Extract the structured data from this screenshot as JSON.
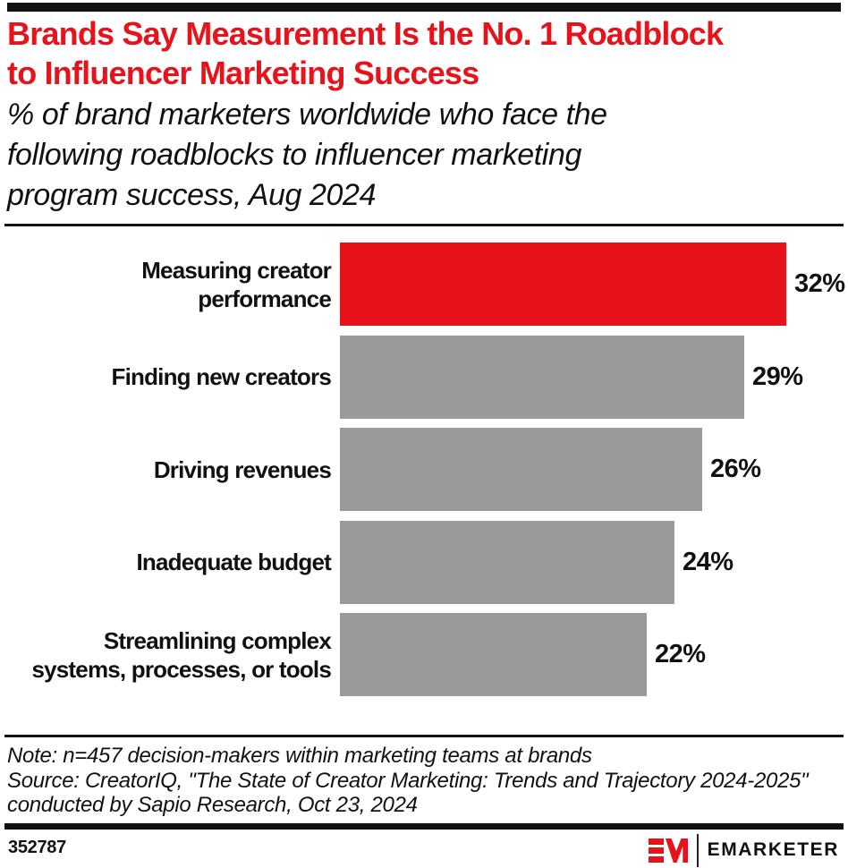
{
  "theme": {
    "accent_red": "#E8121B",
    "bar_gray": "#9A9A9A",
    "rule_black": "#111111"
  },
  "header": {
    "title_lines": [
      "Brands Say Measurement Is the No. 1 Roadblock",
      "to Influencer Marketing Success"
    ],
    "subtitle_lines": [
      "% of brand marketers worldwide who face the",
      "following roadblocks to influencer marketing",
      "program success, Aug 2024"
    ]
  },
  "chart_data": {
    "type": "bar",
    "orientation": "horizontal",
    "title": "Brands Say Measurement Is the No. 1 Roadblock to Influencer Marketing Success",
    "subtitle": "% of brand marketers worldwide who face the following roadblocks to influencer marketing program success, Aug 2024",
    "categories": [
      "Measuring creator performance",
      "Finding new creators",
      "Driving revenues",
      "Inadequate budget",
      "Streamlining complex systems, processes, or tools"
    ],
    "values": [
      32,
      29,
      26,
      24,
      22
    ],
    "value_labels": [
      "32%",
      "29%",
      "26%",
      "24%",
      "22%"
    ],
    "unit": "%",
    "xlim": [
      0,
      32
    ],
    "grid": false,
    "legend": "none",
    "highlight_index": 0,
    "colors": {
      "highlight": "#E8121B",
      "default": "#9A9A9A"
    }
  },
  "notes": {
    "note": "Note: n=457 decision-makers within marketing teams at brands",
    "source_line1": "Source: CreatorIQ, \"The State of Creator Marketing: Trends and Trajectory 2024-2025\"",
    "source_line2": "conducted by Sapio Research, Oct 23, 2024"
  },
  "footer": {
    "chart_id": "352787",
    "brand": "EMARKETER"
  }
}
